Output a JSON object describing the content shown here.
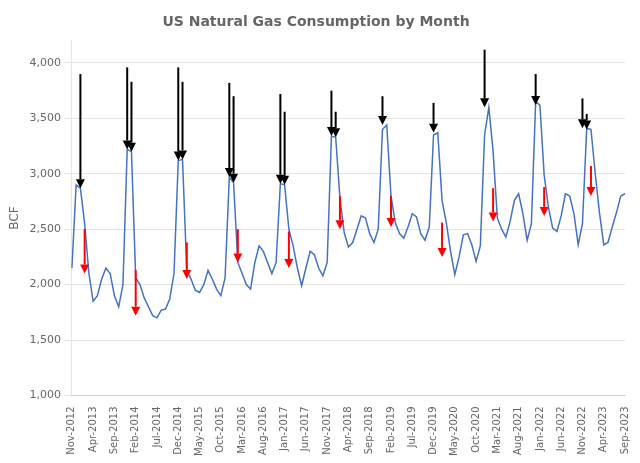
{
  "chart_data": {
    "type": "line",
    "title": "US Natural Gas Consumption by Month",
    "y_label": "BCF",
    "color": "#4472C4",
    "grid": "y",
    "ylim": [
      1000,
      4200
    ],
    "yticks": [
      {
        "value": 1000,
        "label": "1,000"
      },
      {
        "value": 1500,
        "label": "1,500"
      },
      {
        "value": 2000,
        "label": "2,000"
      },
      {
        "value": 2500,
        "label": "2,500"
      },
      {
        "value": 3000,
        "label": "3,000"
      },
      {
        "value": 3500,
        "label": "3,500"
      },
      {
        "value": 4000,
        "label": "4,000"
      }
    ],
    "categories": [
      "Nov-2012",
      null,
      null,
      null,
      null,
      "Apr-2013",
      null,
      null,
      null,
      null,
      "Sep-2013",
      null,
      null,
      null,
      null,
      "Feb-2014",
      null,
      null,
      null,
      null,
      "Jul-2014",
      null,
      null,
      null,
      null,
      "Dec-2014",
      null,
      null,
      null,
      null,
      "May-2015",
      null,
      null,
      null,
      null,
      "Oct-2015",
      null,
      null,
      null,
      null,
      "Mar-2016",
      null,
      null,
      null,
      null,
      "Aug-2016",
      null,
      null,
      null,
      null,
      "Jan-2017",
      null,
      null,
      null,
      null,
      "Jun-2017",
      null,
      null,
      null,
      null,
      "Nov-2017",
      null,
      null,
      null,
      null,
      "Apr-2018",
      null,
      null,
      null,
      null,
      "Sep-2018",
      null,
      null,
      null,
      null,
      "Feb-2019",
      null,
      null,
      null,
      null,
      "Jul-2019",
      null,
      null,
      null,
      null,
      "Dec-2019",
      null,
      null,
      null,
      null,
      "May-2020",
      null,
      null,
      null,
      null,
      "Oct-2020",
      null,
      null,
      null,
      null,
      "Mar-2021",
      null,
      null,
      null,
      null,
      "Aug-2021",
      null,
      null,
      null,
      null,
      "Jan-2022",
      null,
      null,
      null,
      null,
      "Jun-2022",
      null,
      null,
      null,
      null,
      "Nov-2022",
      null,
      null,
      null,
      null,
      "Apr-2023",
      null,
      null,
      null,
      null,
      "Sep-2023"
    ],
    "values": [
      2150,
      2900,
      2870,
      2550,
      2100,
      1850,
      1900,
      2050,
      2150,
      2100,
      1900,
      1800,
      2000,
      3220,
      3200,
      2060,
      2000,
      1880,
      1800,
      1720,
      1700,
      1770,
      1780,
      1870,
      2100,
      3120,
      3130,
      2130,
      2050,
      1950,
      1930,
      2000,
      2130,
      2050,
      1960,
      1900,
      2060,
      2970,
      2920,
      2200,
      2100,
      2000,
      1960,
      2200,
      2350,
      2300,
      2200,
      2100,
      2200,
      2910,
      2900,
      2500,
      2350,
      2150,
      1990,
      2150,
      2300,
      2270,
      2150,
      2080,
      2200,
      3340,
      3330,
      2780,
      2470,
      2340,
      2380,
      2500,
      2620,
      2600,
      2460,
      2380,
      2500,
      3400,
      3440,
      2800,
      2560,
      2460,
      2420,
      2520,
      2640,
      2610,
      2460,
      2400,
      2520,
      3350,
      3370,
      2760,
      2560,
      2300,
      2090,
      2250,
      2450,
      2460,
      2360,
      2210,
      2350,
      3350,
      3600,
      3200,
      2600,
      2500,
      2430,
      2570,
      2760,
      2820,
      2640,
      2400,
      2550,
      3650,
      3620,
      2990,
      2700,
      2510,
      2480,
      2620,
      2820,
      2800,
      2640,
      2360,
      2550,
      3410,
      3400,
      3000,
      2650,
      2360,
      2380,
      2520,
      2650,
      2800,
      2820
    ],
    "arrows": [
      {
        "color": "black",
        "x": [
          2,
          13,
          14,
          25,
          26,
          37,
          38,
          49,
          50,
          61,
          62,
          73,
          85,
          97,
          109,
          120,
          121
        ],
        "y": [
          2870,
          3220,
          3200,
          3120,
          3130,
          2970,
          2920,
          2910,
          2900,
          3340,
          3330,
          3440,
          3370,
          3600,
          3620,
          3410,
          3400
        ],
        "y_from": [
          3900,
          3960,
          3830,
          3960,
          3830,
          3820,
          3700,
          3720,
          3560,
          3750,
          3560,
          3700,
          3640,
          4120,
          3900,
          3680,
          3540
        ]
      },
      {
        "color": "red",
        "x": [
          3,
          15,
          27,
          39,
          51,
          63,
          75,
          87,
          99,
          111,
          122
        ],
        "y": [
          2100,
          1720,
          2050,
          2200,
          2150,
          2500,
          2520,
          2250,
          2570,
          2620,
          2800
        ],
        "y_from": [
          2500,
          2130,
          2380,
          2500,
          2480,
          2800,
          2800,
          2560,
          2870,
          2880,
          3070
        ]
      }
    ]
  }
}
